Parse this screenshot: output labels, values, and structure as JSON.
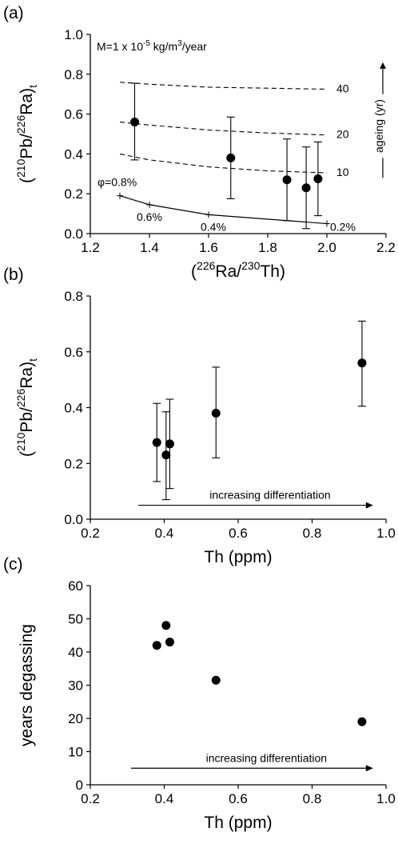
{
  "chart_data": [
    {
      "panel": "(a)",
      "type": "scatter",
      "xlabel": {
        "pre": "(",
        "sup1": "226",
        "main1": "Ra/",
        "sup2": "230",
        "main2": "Th)"
      },
      "ylabel": {
        "pre": "(",
        "sup1": "210",
        "main1": "Pb/",
        "sup2": "226",
        "main2": "Ra)",
        "sub": "t"
      },
      "xlim": [
        1.2,
        2.2
      ],
      "ylim": [
        0.0,
        1.0
      ],
      "xticks": [
        1.2,
        1.4,
        1.6,
        1.8,
        2.0,
        2.2
      ],
      "yticks": [
        0.0,
        0.2,
        0.4,
        0.6,
        0.8,
        1.0
      ],
      "xtick_labels": [
        "1.2",
        "1.4",
        "1.6",
        "1.8",
        "2.0",
        "2.2"
      ],
      "ytick_labels": [
        "0.0",
        "0.2",
        "0.4",
        "0.6",
        "0.8",
        "1.0"
      ],
      "annotation_model": {
        "pre": "M=1 x 10",
        "exp": "-5",
        "post": " kg/m",
        "exp2": "3",
        "post2": "/year"
      },
      "annotation_ageing": "ageing (yr)",
      "points": [
        {
          "x": 1.35,
          "y": 0.56,
          "err_low": 0.37,
          "err_high": 0.755
        },
        {
          "x": 1.675,
          "y": 0.38,
          "err_low": 0.175,
          "err_high": 0.585
        },
        {
          "x": 1.865,
          "y": 0.27,
          "err_low": 0.065,
          "err_high": 0.475
        },
        {
          "x": 1.93,
          "y": 0.23,
          "err_low": 0.025,
          "err_high": 0.435
        },
        {
          "x": 1.97,
          "y": 0.275,
          "err_low": 0.09,
          "err_high": 0.46
        }
      ],
      "porosity_curve": {
        "x": [
          1.3,
          1.4,
          1.6,
          2.0
        ],
        "y": [
          0.19,
          0.145,
          0.095,
          0.05
        ],
        "labels": [
          "φ=0.8%",
          "0.6%",
          "0.4%",
          "0.2%"
        ]
      },
      "ageing_curves": [
        {
          "label": "40",
          "x": [
            1.3,
            1.4,
            1.6,
            1.8,
            2.0
          ],
          "y": [
            0.76,
            0.75,
            0.735,
            0.73,
            0.725
          ]
        },
        {
          "label": "20",
          "x": [
            1.3,
            1.4,
            1.6,
            1.8,
            2.0
          ],
          "y": [
            0.56,
            0.545,
            0.52,
            0.505,
            0.495
          ]
        },
        {
          "label": "10",
          "x": [
            1.3,
            1.4,
            1.6,
            1.8,
            2.0
          ],
          "y": [
            0.4,
            0.37,
            0.335,
            0.315,
            0.305
          ]
        }
      ]
    },
    {
      "panel": "(b)",
      "type": "scatter",
      "xlabel": "Th (ppm)",
      "ylabel": {
        "pre": "(",
        "sup1": "210",
        "main1": "Pb/",
        "sup2": "226",
        "main2": "Ra)",
        "sub": "t"
      },
      "xlim": [
        0.2,
        1.0
      ],
      "ylim": [
        0.0,
        0.8
      ],
      "xticks": [
        0.2,
        0.4,
        0.6,
        0.8,
        1.0
      ],
      "yticks": [
        0.0,
        0.2,
        0.4,
        0.6,
        0.8
      ],
      "xtick_labels": [
        "0.2",
        "0.4",
        "0.6",
        "0.8",
        "1.0"
      ],
      "ytick_labels": [
        "0.0",
        "0.2",
        "0.4",
        "0.6",
        "0.8"
      ],
      "arrow_label": "increasing differentiation",
      "arrow_from": [
        0.33,
        0.05
      ],
      "arrow_to": [
        0.965,
        0.05
      ],
      "points": [
        {
          "x": 0.38,
          "y": 0.275,
          "err_low": 0.135,
          "err_high": 0.415
        },
        {
          "x": 0.405,
          "y": 0.23,
          "err_low": 0.07,
          "err_high": 0.385
        },
        {
          "x": 0.415,
          "y": 0.27,
          "err_low": 0.11,
          "err_high": 0.43
        },
        {
          "x": 0.54,
          "y": 0.38,
          "err_low": 0.22,
          "err_high": 0.545
        },
        {
          "x": 0.935,
          "y": 0.56,
          "err_low": 0.405,
          "err_high": 0.71
        }
      ]
    },
    {
      "panel": "(c)",
      "type": "scatter",
      "xlabel": "Th (ppm)",
      "ylabel": "years degassing",
      "xlim": [
        0.2,
        1.0
      ],
      "ylim": [
        0,
        60
      ],
      "xticks": [
        0.2,
        0.4,
        0.6,
        0.8,
        1.0
      ],
      "yticks": [
        0,
        10,
        20,
        30,
        40,
        50,
        60
      ],
      "xtick_labels": [
        "0.2",
        "0.4",
        "0.6",
        "0.8",
        "1.0"
      ],
      "ytick_labels": [
        "0",
        "10",
        "20",
        "30",
        "40",
        "50",
        "60"
      ],
      "arrow_label": "increasing differentiation",
      "arrow_from": [
        0.31,
        5
      ],
      "arrow_to": [
        0.965,
        5
      ],
      "points": [
        {
          "x": 0.38,
          "y": 42
        },
        {
          "x": 0.405,
          "y": 48
        },
        {
          "x": 0.415,
          "y": 43
        },
        {
          "x": 0.54,
          "y": 31.5
        },
        {
          "x": 0.935,
          "y": 19
        }
      ]
    }
  ]
}
